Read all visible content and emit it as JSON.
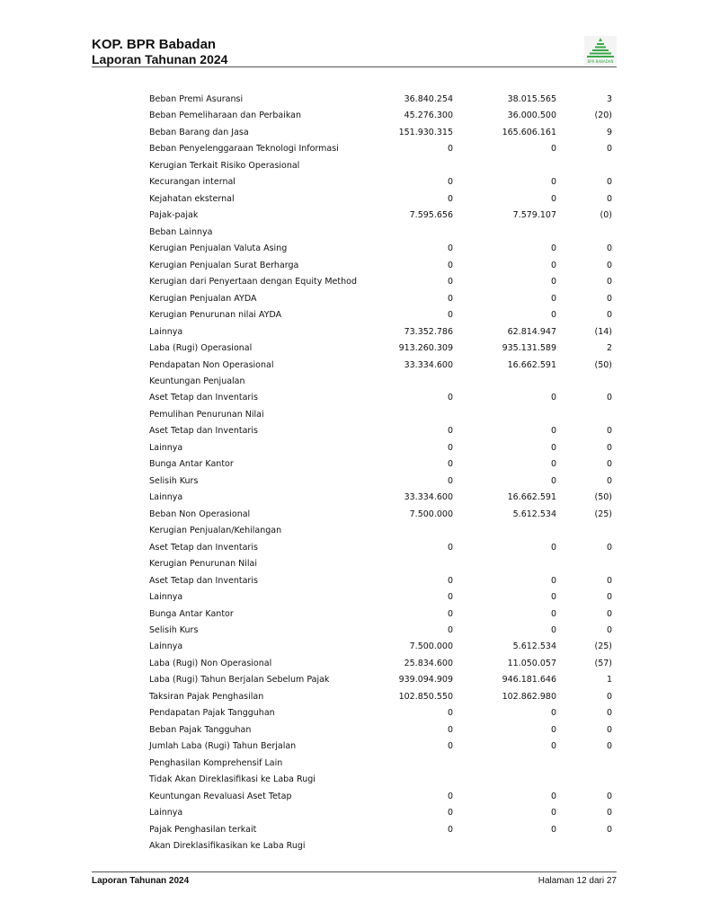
{
  "header": {
    "company": "KOP. BPR Babadan",
    "subtitle": "Laporan Tahunan 2024",
    "logo_text": "BPR BABADAN",
    "logo_color": "#3aa84a"
  },
  "rows": [
    [
      "Beban Premi Asuransi",
      "36.840.254",
      "38.015.565",
      "3"
    ],
    [
      "Beban Pemeliharaan dan Perbaikan",
      "45.276.300",
      "36.000.500",
      "(20)"
    ],
    [
      "Beban Barang dan Jasa",
      "151.930.315",
      "165.606.161",
      "9"
    ],
    [
      "Beban Penyelenggaraan Teknologi Informasi",
      "0",
      "0",
      "0"
    ],
    [
      "Kerugian Terkait Risiko Operasional",
      "",
      "",
      ""
    ],
    [
      "Kecurangan internal",
      "0",
      "0",
      "0"
    ],
    [
      "Kejahatan eksternal",
      "0",
      "0",
      "0"
    ],
    [
      "Pajak-pajak",
      "7.595.656",
      "7.579.107",
      "(0)"
    ],
    [
      "Beban Lainnya",
      "",
      "",
      ""
    ],
    [
      "Kerugian Penjualan Valuta Asing",
      "0",
      "0",
      "0"
    ],
    [
      "Kerugian Penjualan Surat Berharga",
      "0",
      "0",
      "0"
    ],
    [
      "Kerugian dari Penyertaan dengan Equity Method",
      "0",
      "0",
      "0"
    ],
    [
      "Kerugian Penjualan AYDA",
      "0",
      "0",
      "0"
    ],
    [
      "Kerugian Penurunan nilai AYDA",
      "0",
      "0",
      "0"
    ],
    [
      "Lainnya",
      "73.352.786",
      "62.814.947",
      "(14)"
    ],
    [
      "Laba (Rugi) Operasional",
      "913.260.309",
      "935.131.589",
      "2"
    ],
    [
      "Pendapatan Non Operasional",
      "33.334.600",
      "16.662.591",
      "(50)"
    ],
    [
      "Keuntungan Penjualan",
      "",
      "",
      ""
    ],
    [
      "Aset Tetap dan Inventaris",
      "0",
      "0",
      "0"
    ],
    [
      "Pemulihan Penurunan Nilai",
      "",
      "",
      ""
    ],
    [
      "Aset Tetap dan Inventaris",
      "0",
      "0",
      "0"
    ],
    [
      "Lainnya",
      "0",
      "0",
      "0"
    ],
    [
      "Bunga Antar Kantor",
      "0",
      "0",
      "0"
    ],
    [
      "Selisih Kurs",
      "0",
      "0",
      "0"
    ],
    [
      "Lainnya",
      "33.334.600",
      "16.662.591",
      "(50)"
    ],
    [
      "Beban Non Operasional",
      "7.500.000",
      "5.612.534",
      "(25)"
    ],
    [
      "Kerugian Penjualan/Kehilangan",
      "",
      "",
      ""
    ],
    [
      "Aset Tetap dan Inventaris",
      "0",
      "0",
      "0"
    ],
    [
      "Kerugian Penurunan Nilai",
      "",
      "",
      ""
    ],
    [
      "Aset Tetap dan Inventaris",
      "0",
      "0",
      "0"
    ],
    [
      "Lainnya",
      "0",
      "0",
      "0"
    ],
    [
      "Bunga Antar Kantor",
      "0",
      "0",
      "0"
    ],
    [
      "Selisih Kurs",
      "0",
      "0",
      "0"
    ],
    [
      "Lainnya",
      "7.500.000",
      "5.612.534",
      "(25)"
    ],
    [
      "Laba (Rugi) Non Operasional",
      "25.834.600",
      "11.050.057",
      "(57)"
    ],
    [
      "Laba (Rugi) Tahun Berjalan Sebelum Pajak",
      "939.094.909",
      "946.181.646",
      "1"
    ],
    [
      "Taksiran Pajak Penghasilan",
      "102.850.550",
      "102.862.980",
      "0"
    ],
    [
      "Pendapatan Pajak Tangguhan",
      "0",
      "0",
      "0"
    ],
    [
      "Beban Pajak Tangguhan",
      "0",
      "0",
      "0"
    ],
    [
      "Jumlah Laba (Rugi) Tahun Berjalan",
      "0",
      "0",
      "0"
    ],
    [
      "Penghasilan Komprehensif Lain",
      "",
      "",
      ""
    ],
    [
      "Tidak Akan Direklasifikasi ke Laba Rugi",
      "",
      "",
      ""
    ],
    [
      "Keuntungan Revaluasi Aset Tetap",
      "0",
      "0",
      "0"
    ],
    [
      "Lainnya",
      "0",
      "0",
      "0"
    ],
    [
      "Pajak Penghasilan terkait",
      "0",
      "0",
      "0"
    ],
    [
      "Akan Direklasifikasikan ke Laba Rugi",
      "",
      "",
      ""
    ]
  ],
  "footer": {
    "left": "Laporan Tahunan 2024",
    "right": "Halaman 12 dari 27"
  }
}
